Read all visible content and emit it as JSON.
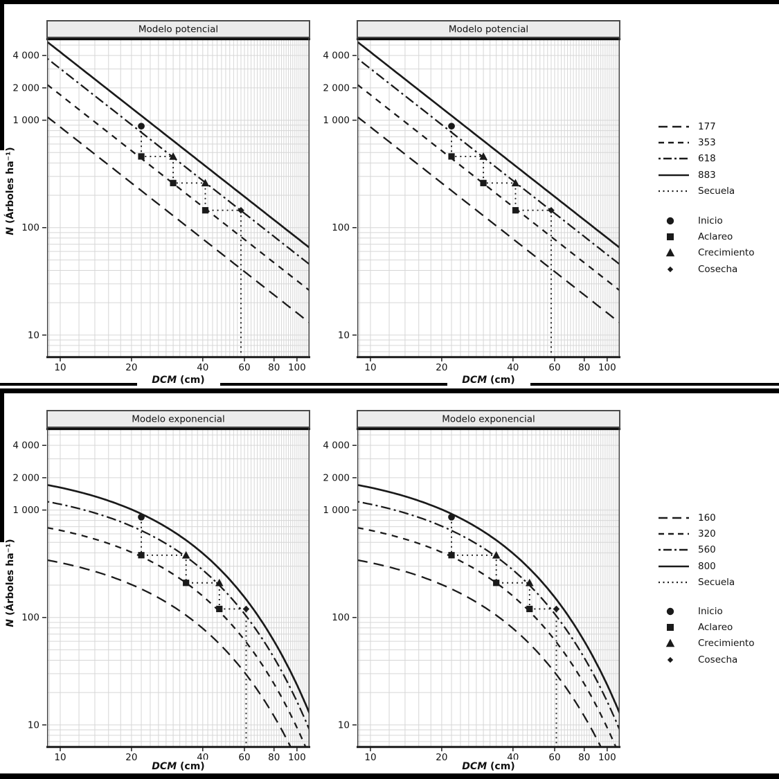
{
  "colors": {
    "background": "#ffffff",
    "ink": "#111111",
    "line": "#1a1a1a",
    "grid": "#d6d6d6",
    "strip_fill": "#ebebeb",
    "strip_border": "#4a4a4a",
    "frame": "#222222",
    "border_bars": "#000000"
  },
  "chart_data": [
    {
      "type": "line",
      "title": "Modelo potencial",
      "panels": 2,
      "note": "same chart duplicated in left and right panel",
      "xlabel": "DCM (cm)",
      "ylabel": "N (Árboles ha⁻¹)",
      "xlabel_parts": {
        "italic": "DCM",
        "rest": " (cm)"
      },
      "ylabel_parts": {
        "italic": "N",
        "rest": " (Árboles ha⁻¹)"
      },
      "x_scale": "log",
      "y_scale": "log",
      "xlim": [
        8.8,
        113
      ],
      "ylim": [
        6.3,
        5900
      ],
      "x_ticks": [
        10,
        20,
        40,
        60,
        80,
        100
      ],
      "y_ticks": [
        4000,
        2000,
        1000,
        100,
        10
      ],
      "y_tick_labels": [
        "4 000",
        "2 000",
        "1 000",
        "100",
        "10"
      ],
      "grid": true,
      "legend_position": "right",
      "isoline_model": {
        "form": "N = value × (DCM/25)^(-1.73)",
        "reference_dcm": 25,
        "exponent": -1.73
      },
      "isolines": [
        {
          "label": "177",
          "value": 177,
          "linestyle": "longdash"
        },
        {
          "label": "353",
          "value": 353,
          "linestyle": "dashed"
        },
        {
          "label": "618",
          "value": 618,
          "linestyle": "dashdot"
        },
        {
          "label": "883",
          "value": 883,
          "linestyle": "solid"
        }
      ],
      "secuela": {
        "label": "Secuela",
        "linestyle": "dotted",
        "trajectory": [
          {
            "stage": "Inicio",
            "marker": "circle",
            "dcm": 22,
            "n": 880
          },
          {
            "stage": "Aclareo",
            "marker": "square",
            "dcm": 22,
            "n": 460
          },
          {
            "stage": "Crecimiento",
            "marker": "triangle",
            "dcm": 30,
            "n": 460
          },
          {
            "stage": "Aclareo",
            "marker": "square",
            "dcm": 30,
            "n": 260
          },
          {
            "stage": "Crecimiento",
            "marker": "triangle",
            "dcm": 41,
            "n": 260
          },
          {
            "stage": "Aclareo",
            "marker": "square",
            "dcm": 41,
            "n": 145
          },
          {
            "stage": "Cosecha",
            "marker": "diamond",
            "dcm": 58,
            "n": 145
          }
        ],
        "final_drop_dcm": 58
      },
      "stage_legend": [
        {
          "label": "Inicio",
          "marker": "circle"
        },
        {
          "label": "Aclareo",
          "marker": "square"
        },
        {
          "label": "Crecimiento",
          "marker": "triangle"
        },
        {
          "label": "Cosecha",
          "marker": "diamond"
        }
      ]
    },
    {
      "type": "line",
      "title": "Modelo exponencial",
      "panels": 2,
      "note": "same chart duplicated in left and right panel",
      "xlabel": "DCM (cm)",
      "ylabel": "N (Árboles ha⁻¹)",
      "xlabel_parts": {
        "italic": "DCM",
        "rest": " (cm)"
      },
      "ylabel_parts": {
        "italic": "N",
        "rest": " (Árboles ha⁻¹)"
      },
      "x_scale": "log",
      "y_scale": "log",
      "xlim": [
        8.8,
        113
      ],
      "ylim": [
        6.3,
        5900
      ],
      "x_ticks": [
        10,
        20,
        40,
        60,
        80,
        100
      ],
      "y_ticks": [
        4000,
        2000,
        1000,
        100,
        10
      ],
      "y_tick_labels": [
        "4 000",
        "2 000",
        "1 000",
        "100",
        "10"
      ],
      "grid": true,
      "legend_position": "right",
      "isoline_model": {
        "form": "N = value × e^(-0.047·(DCM-25))",
        "reference_dcm": 25,
        "decay_rate": 0.047
      },
      "isolines": [
        {
          "label": "160",
          "value": 160,
          "linestyle": "longdash"
        },
        {
          "label": "320",
          "value": 320,
          "linestyle": "dashed"
        },
        {
          "label": "560",
          "value": 560,
          "linestyle": "dashdot"
        },
        {
          "label": "800",
          "value": 800,
          "linestyle": "solid"
        }
      ],
      "secuela": {
        "label": "Secuela",
        "linestyle": "dotted",
        "trajectory": [
          {
            "stage": "Inicio",
            "marker": "circle",
            "dcm": 22,
            "n": 860
          },
          {
            "stage": "Aclareo",
            "marker": "square",
            "dcm": 22,
            "n": 380
          },
          {
            "stage": "Crecimiento",
            "marker": "triangle",
            "dcm": 34,
            "n": 380
          },
          {
            "stage": "Aclareo",
            "marker": "square",
            "dcm": 34,
            "n": 210
          },
          {
            "stage": "Crecimiento",
            "marker": "triangle",
            "dcm": 47,
            "n": 210
          },
          {
            "stage": "Aclareo",
            "marker": "square",
            "dcm": 47,
            "n": 120
          },
          {
            "stage": "Cosecha",
            "marker": "diamond",
            "dcm": 61,
            "n": 120
          }
        ],
        "final_drop_dcm": 61
      },
      "stage_legend": [
        {
          "label": "Inicio",
          "marker": "circle"
        },
        {
          "label": "Aclareo",
          "marker": "square"
        },
        {
          "label": "Crecimiento",
          "marker": "triangle"
        },
        {
          "label": "Cosecha",
          "marker": "diamond"
        }
      ]
    }
  ]
}
